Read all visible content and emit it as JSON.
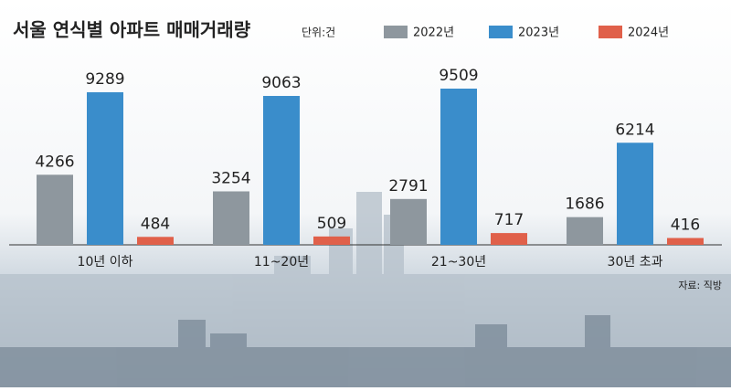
{
  "chart_data": {
    "type": "bar",
    "title": "서울 연식별 아파트 매매거래량",
    "subtitle": "단위:건",
    "categories": [
      "10년 이하",
      "11~20년",
      "21~30년",
      "30년 초과"
    ],
    "series": [
      {
        "name": "2022년",
        "color": "#8e979e",
        "values": [
          4266,
          3254,
          2791,
          1686
        ]
      },
      {
        "name": "2023년",
        "color": "#3a8dcb",
        "values": [
          9289,
          9063,
          9509,
          6214
        ]
      },
      {
        "name": "2024년",
        "color": "#e0604a",
        "values": [
          484,
          509,
          717,
          416
        ]
      }
    ],
    "source": "자료: 직방"
  }
}
